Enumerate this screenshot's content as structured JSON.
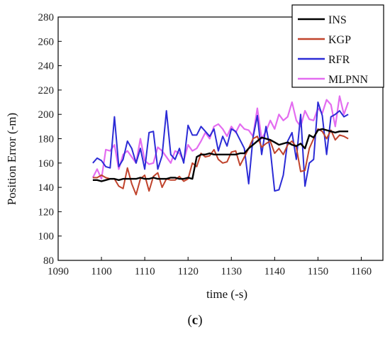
{
  "panel_label": {
    "open": "(",
    "letter": "c",
    "close": ")"
  },
  "chart_data": {
    "type": "line",
    "title": "",
    "xlabel": "time (-s)",
    "ylabel": "Position Error  (-m)",
    "xlim": [
      1090,
      1165
    ],
    "ylim": [
      80,
      280
    ],
    "xticks": [
      1090,
      1100,
      1110,
      1120,
      1130,
      1140,
      1150,
      1160
    ],
    "yticks": [
      80,
      100,
      120,
      140,
      160,
      180,
      200,
      220,
      240,
      260,
      280
    ],
    "grid": false,
    "legend_position": "top-right",
    "x": [
      1098,
      1099,
      1100,
      1101,
      1102,
      1103,
      1104,
      1105,
      1106,
      1107,
      1108,
      1109,
      1110,
      1111,
      1112,
      1113,
      1114,
      1115,
      1116,
      1117,
      1118,
      1119,
      1120,
      1121,
      1122,
      1123,
      1124,
      1125,
      1126,
      1127,
      1128,
      1129,
      1130,
      1131,
      1132,
      1133,
      1134,
      1135,
      1136,
      1137,
      1138,
      1139,
      1140,
      1141,
      1142,
      1143,
      1144,
      1145,
      1146,
      1147,
      1148,
      1149,
      1150,
      1151,
      1152,
      1153,
      1154,
      1155,
      1156,
      1157
    ],
    "series": [
      {
        "name": "MLPNN",
        "color": "#e36cf0",
        "width": 2.2,
        "values": [
          148,
          155,
          147,
          171,
          170,
          175,
          155,
          167,
          170,
          165,
          160,
          180,
          162,
          159,
          160,
          173,
          170,
          165,
          160,
          170,
          168,
          162,
          175,
          170,
          172,
          178,
          185,
          180,
          190,
          192,
          188,
          182,
          190,
          185,
          192,
          188,
          187,
          182,
          205,
          180,
          186,
          195,
          188,
          200,
          195,
          198,
          210,
          195,
          190,
          203,
          196,
          195,
          205,
          201,
          212,
          208,
          190,
          215,
          200,
          210
        ]
      },
      {
        "name": "RFR",
        "color": "#2b2bd6",
        "width": 2.0,
        "values": [
          160,
          164,
          162,
          157,
          156,
          198,
          157,
          163,
          178,
          172,
          160,
          172,
          155,
          185,
          186,
          155,
          166,
          203,
          167,
          163,
          172,
          160,
          191,
          183,
          183,
          190,
          186,
          182,
          188,
          170,
          182,
          174,
          188,
          186,
          179,
          172,
          143,
          181,
          199,
          167,
          190,
          171,
          137,
          138,
          150,
          178,
          185,
          163,
          200,
          141,
          160,
          163,
          210,
          199,
          167,
          198,
          200,
          203,
          198,
          200
        ]
      },
      {
        "name": "KGP",
        "color": "#c0432c",
        "width": 2.0,
        "values": [
          148,
          148,
          150,
          148,
          147,
          147,
          141,
          139,
          156,
          143,
          134,
          147,
          150,
          137,
          149,
          152,
          140,
          147,
          146,
          146,
          149,
          145,
          147,
          160,
          157,
          168,
          165,
          166,
          171,
          163,
          160,
          161,
          169,
          170,
          158,
          165,
          172,
          180,
          182,
          173,
          176,
          178,
          168,
          172,
          167,
          175,
          178,
          173,
          153,
          154,
          172,
          180,
          188,
          186,
          180,
          187,
          179,
          183,
          182,
          180
        ]
      },
      {
        "name": "INS",
        "color": "#000000",
        "width": 2.4,
        "values": [
          146,
          146,
          145,
          146,
          147,
          147,
          146,
          147,
          147,
          147,
          147,
          148,
          147,
          147,
          148,
          147,
          147,
          147,
          148,
          148,
          147,
          147,
          148,
          147,
          165,
          167,
          167,
          168,
          167,
          167,
          167,
          167,
          167,
          167,
          168,
          168,
          172,
          175,
          178,
          181,
          180,
          179,
          177,
          175,
          176,
          177,
          175,
          174,
          176,
          172,
          183,
          181,
          187,
          188,
          187,
          186,
          185,
          186,
          186,
          186
        ]
      }
    ],
    "legend_order": [
      "INS",
      "KGP",
      "RFR",
      "MLPNN"
    ]
  }
}
